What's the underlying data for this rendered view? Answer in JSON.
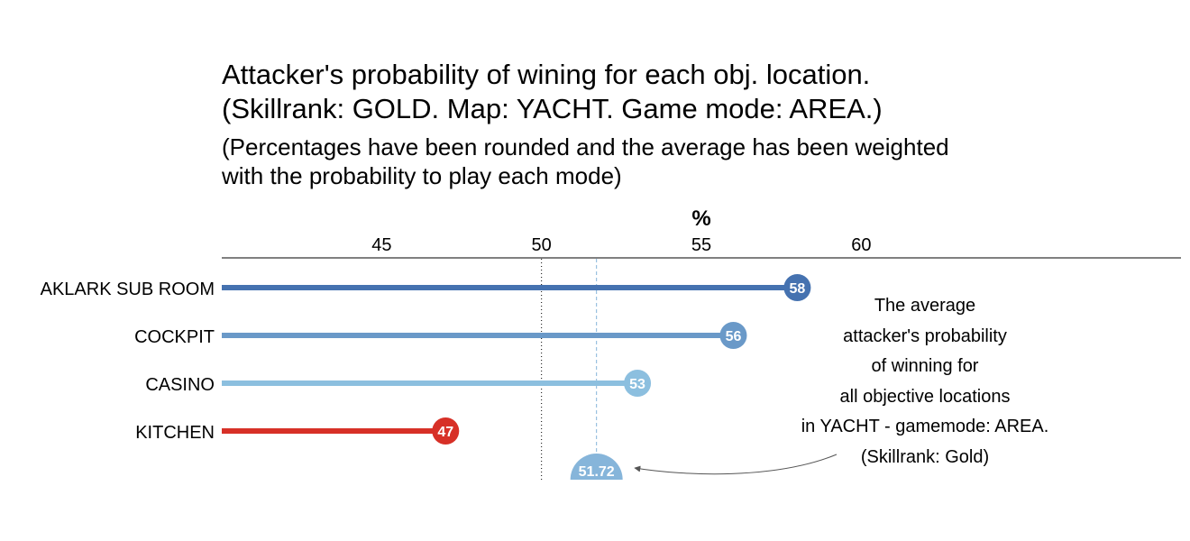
{
  "title": {
    "line1": "Attacker's probability of wining for each obj. location.",
    "line2": "(Skillrank: GOLD. Map: YACHT. Game mode: AREA.)"
  },
  "subtitle": {
    "line1": "(Percentages have been rounded and the average has been weighted",
    "line2": "with the probability to play each mode)"
  },
  "annotation": {
    "lines": [
      "The average",
      "attacker's probability",
      "of winning for",
      "all objective locations",
      "in YACHT - gamemode: AREA.",
      "(Skillrank: Gold)"
    ]
  },
  "colors": {
    "dark_blue": "#4572b0",
    "mid_blue": "#6a99c8",
    "light_blue": "#8cbfdf",
    "red": "#d73027",
    "average_blue": "#86b5da",
    "arrow": "#555555"
  },
  "chart_data": {
    "type": "lollipop",
    "orientation": "horizontal",
    "xlabel": "%",
    "axis_position": "top",
    "xlim": [
      40,
      70
    ],
    "ticks": [
      45,
      50,
      55,
      60
    ],
    "tick_labels": [
      "45",
      "50",
      "55",
      "60"
    ],
    "reference_line": 50,
    "categories": [
      "AKLARK SUB ROOM",
      "COCKPIT",
      "CASINO",
      "KITCHEN"
    ],
    "values": [
      58,
      56,
      53,
      47
    ],
    "value_labels": [
      "58",
      "56",
      "53",
      "47"
    ],
    "point_colors": [
      "#4572b0",
      "#6a99c8",
      "#8cbfdf",
      "#d73027"
    ],
    "average": 51.72,
    "average_label": "51.72",
    "average_color": "#86b5da"
  }
}
